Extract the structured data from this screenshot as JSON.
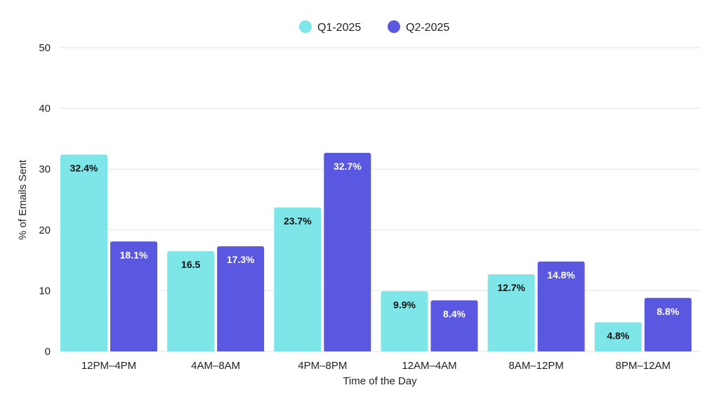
{
  "chart_data": {
    "type": "bar",
    "xlabel": "Time of the Day",
    "ylabel": "% of Emails Sent",
    "ylim": [
      0,
      50
    ],
    "yticks": [
      0,
      10,
      20,
      30,
      40,
      50
    ],
    "grid": true,
    "legend_position": "top-center",
    "categories": [
      "12PM–4PM",
      "4AM–8AM",
      "4PM–8PM",
      "12AM–4AM",
      "8AM–12PM",
      "8PM–12AM"
    ],
    "series": [
      {
        "name": "Q1-2025",
        "color": "#7ee5e8",
        "label_color": "#111111",
        "values": [
          32.4,
          16.5,
          23.7,
          9.9,
          12.7,
          4.8
        ],
        "labels": [
          "32.4%",
          "16.5",
          "23.7%",
          "9.9%",
          "12.7%",
          "4.8%"
        ]
      },
      {
        "name": "Q2-2025",
        "color": "#5a57e0",
        "label_color": "#ffffff",
        "values": [
          18.1,
          17.3,
          32.7,
          8.4,
          14.8,
          8.8
        ],
        "labels": [
          "18.1%",
          "17.3%",
          "32.7%",
          "8.4%",
          "14.8%",
          "8.8%"
        ]
      }
    ]
  }
}
